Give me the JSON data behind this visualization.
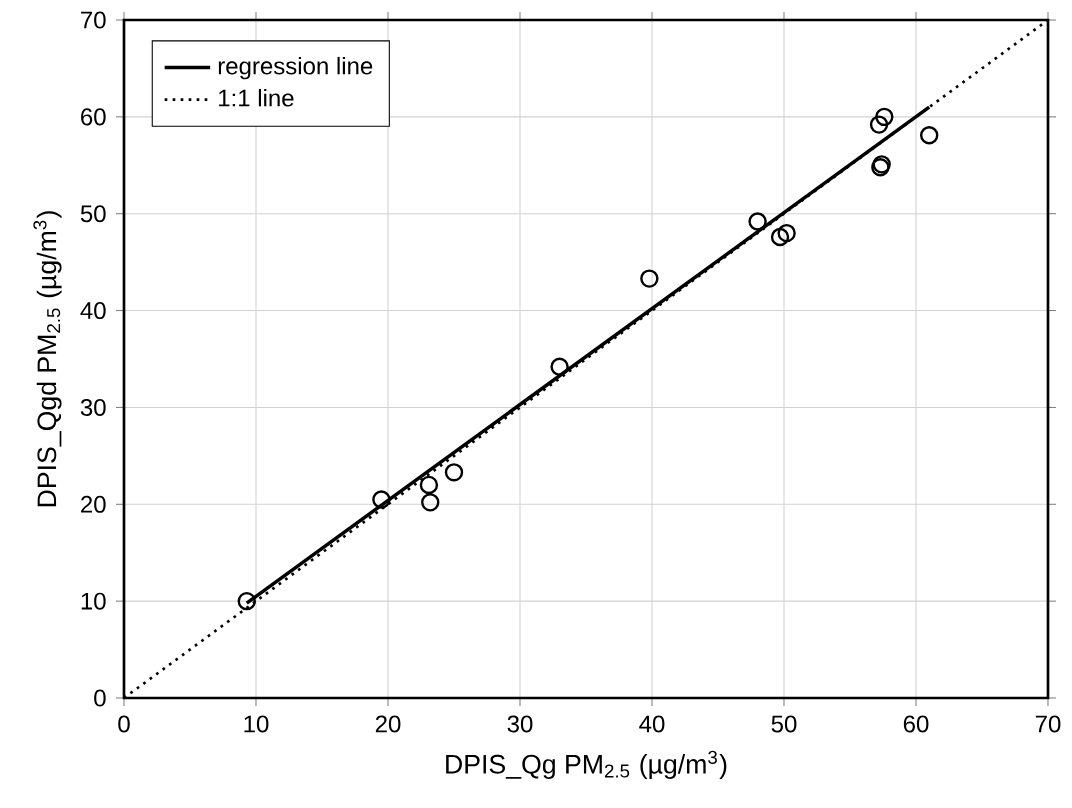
{
  "chart_data": {
    "type": "scatter",
    "xlabel": "DPIS_Qg PM$_{2.5}$ (µg/m$^{3}$)",
    "ylabel": "DPIS_Qgd PM$_{2.5}$ (µg/m$^{3}$)",
    "xlim": [
      0,
      70
    ],
    "ylim": [
      0,
      70
    ],
    "xticks": [
      0,
      10,
      20,
      30,
      40,
      50,
      60,
      70
    ],
    "yticks": [
      0,
      10,
      20,
      30,
      40,
      50,
      60,
      70
    ],
    "grid": true,
    "legend": "top left",
    "series": [
      {
        "color": "#000000",
        "marker": "circle",
        "x": [
          9.3,
          19.5,
          23.1,
          23.2,
          25,
          33,
          39.8,
          48,
          49.7,
          50.2,
          57.2,
          57.6,
          57.3,
          57.4,
          61
        ],
        "values": [
          10,
          20.5,
          22,
          20.2,
          23.3,
          34.2,
          43.3,
          49.2,
          47.6,
          48,
          59.2,
          60,
          54.8,
          55.1,
          58.1
        ]
      },
      {
        "type": "line",
        "name": "regression line",
        "color": "#000000",
        "line_style": "solid",
        "x": [
          9.3,
          61
        ],
        "values": [
          9.8,
          61
        ]
      },
      {
        "type": "line",
        "name": "1:1 line",
        "color": "#000000",
        "line_style": "dotted",
        "x": [
          0,
          70
        ],
        "values": [
          0,
          70
        ]
      }
    ]
  }
}
